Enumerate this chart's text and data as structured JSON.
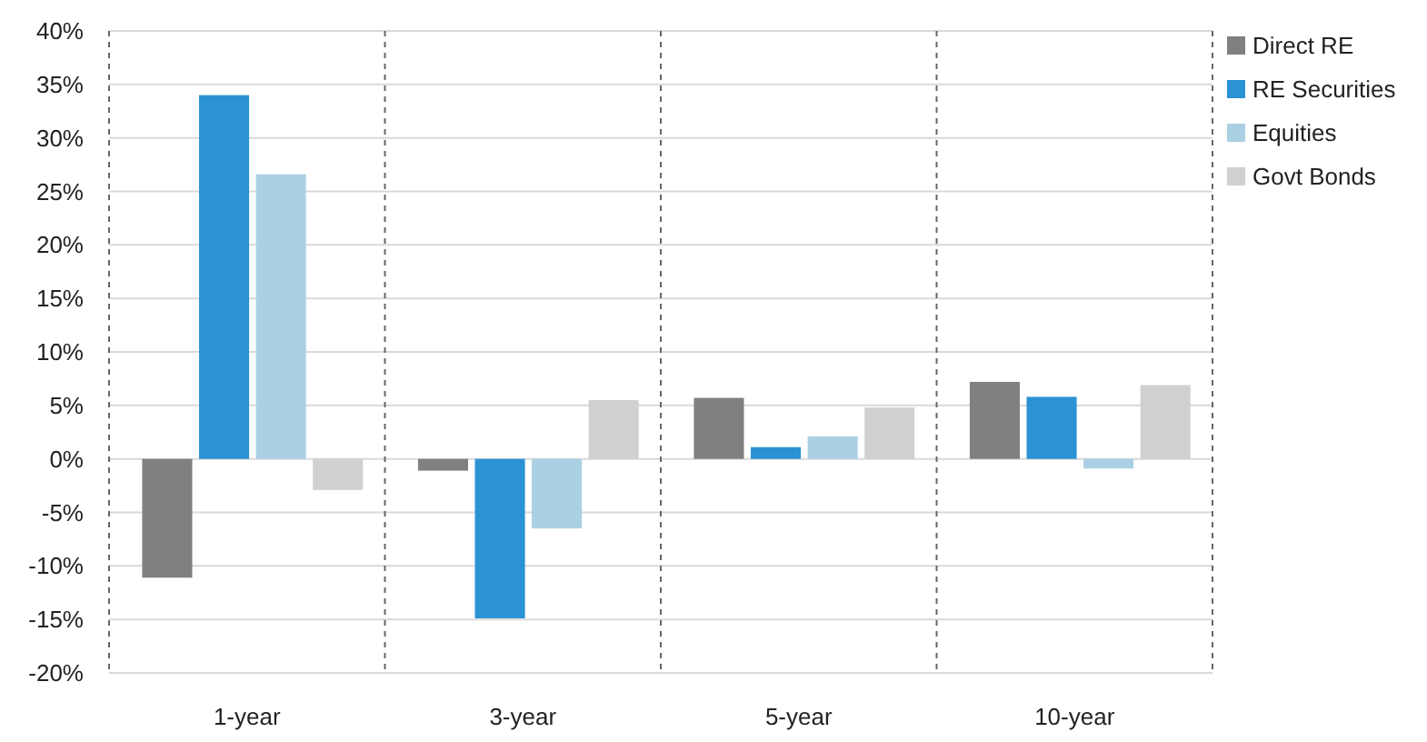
{
  "chart_data": {
    "type": "bar",
    "categories": [
      "1-year",
      "3-year",
      "5-year",
      "10-year"
    ],
    "series": [
      {
        "name": "Direct RE",
        "color": "#808080",
        "values": [
          -11.1,
          -1.1,
          5.7,
          7.2
        ]
      },
      {
        "name": "RE Securities",
        "color": "#2b92d4",
        "values": [
          34.0,
          -14.9,
          1.1,
          5.8
        ]
      },
      {
        "name": "Equities",
        "color": "#abd0e4",
        "values": [
          26.6,
          -6.5,
          2.1,
          -0.9
        ]
      },
      {
        "name": "Govt Bonds",
        "color": "#d0d0d0",
        "values": [
          -2.9,
          5.5,
          4.8,
          6.9
        ]
      }
    ],
    "ylim": [
      -20,
      40
    ],
    "yticks": [
      {
        "value": -20,
        "label": "-20%"
      },
      {
        "value": -15,
        "label": "-15%"
      },
      {
        "value": -10,
        "label": "-10%"
      },
      {
        "value": -5,
        "label": "-5%"
      },
      {
        "value": 0,
        "label": "0%"
      },
      {
        "value": 5,
        "label": "5%"
      },
      {
        "value": 10,
        "label": "10%"
      },
      {
        "value": 15,
        "label": "15%"
      },
      {
        "value": 20,
        "label": "20%"
      },
      {
        "value": 25,
        "label": "25%"
      },
      {
        "value": 30,
        "label": "30%"
      },
      {
        "value": 35,
        "label": "35%"
      },
      {
        "value": 40,
        "label": "40%"
      }
    ],
    "grid": true,
    "legend": "top right"
  }
}
